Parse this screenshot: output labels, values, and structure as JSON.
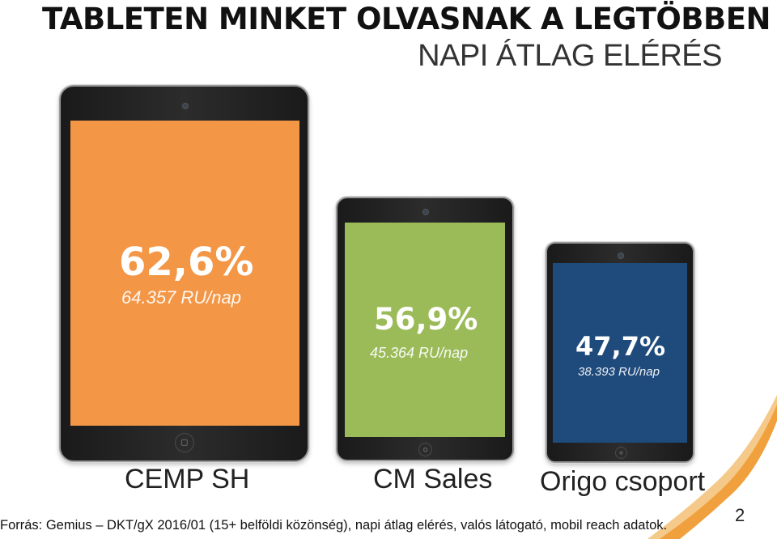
{
  "chart_data": {
    "type": "bar",
    "title": "TABLETEN MINKET OLVASNAK A LEGTÖBBEN",
    "subtitle": "NAPI ÁTLAG ELÉRÉS",
    "categories": [
      "CEMP SH",
      "CM Sales",
      "Origo csoport"
    ],
    "values": [
      62.6,
      56.9,
      47.7
    ],
    "value_labels": [
      "62,6%",
      "56,9%",
      "47,7%"
    ],
    "secondary_labels": [
      "64.357 RU/nap",
      "45.364 RU/nap",
      "38.393 RU/nap"
    ],
    "colors": [
      "#f39646",
      "#9bbb59",
      "#1f4a7c"
    ]
  },
  "footer": {
    "source": "Forrás: Gemius – DKT/gX 2016/01 (15+ belföldi közönség), napi átlag elérés, valós látogató, mobil reach adatok.",
    "page_number": "2"
  },
  "decoration": {
    "accent_color": "#f0a03c"
  }
}
